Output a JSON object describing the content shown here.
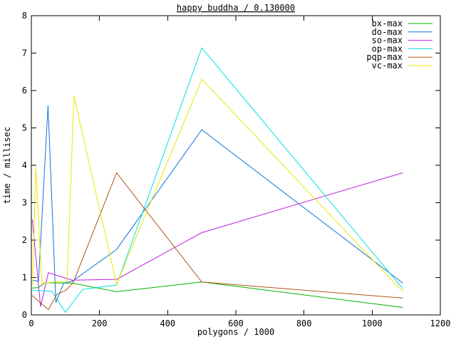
{
  "window": {
    "title": "happy buddha / 0.130000"
  },
  "chart_data": {
    "type": "line",
    "title": "happy buddha / 0.130000",
    "xlabel": "polygons / 1000",
    "ylabel": "time / millisec",
    "xlim": [
      0,
      1200
    ],
    "ylim": [
      0,
      8
    ],
    "xticks": [
      0,
      200,
      400,
      600,
      800,
      1000,
      1200
    ],
    "yticks": [
      0,
      1,
      2,
      3,
      4,
      5,
      6,
      7,
      8
    ],
    "grid": false,
    "legend_position": "top-right-inside",
    "background_color": "#ffffff",
    "border_color": "#000000",
    "series": [
      {
        "name": "bx-max",
        "color": "#00b000",
        "points": [
          [
            2,
            0.72
          ],
          [
            20,
            0.73
          ],
          [
            40,
            0.86
          ],
          [
            120,
            0.85
          ],
          [
            250,
            0.62
          ],
          [
            500,
            0.88
          ],
          [
            1090,
            0.2
          ]
        ]
      },
      {
        "name": "do-max",
        "color": "#0d75dc",
        "points": [
          [
            3,
            0.93
          ],
          [
            21,
            0.9
          ],
          [
            49,
            5.6
          ],
          [
            72,
            0.33
          ],
          [
            95,
            0.85
          ],
          [
            120,
            0.9
          ],
          [
            250,
            1.75
          ],
          [
            500,
            4.95
          ],
          [
            1090,
            0.85
          ]
        ]
      },
      {
        "name": "so-max",
        "color": "#c01fe0",
        "points": [
          [
            3,
            2.55
          ],
          [
            27,
            0.22
          ],
          [
            50,
            1.13
          ],
          [
            120,
            0.93
          ],
          [
            250,
            0.95
          ],
          [
            500,
            2.2
          ],
          [
            1090,
            3.8
          ]
        ]
      },
      {
        "name": "op-max",
        "color": "#00e0e0",
        "points": [
          [
            2,
            0.66
          ],
          [
            60,
            0.63
          ],
          [
            100,
            0.07
          ],
          [
            150,
            0.68
          ],
          [
            250,
            0.8
          ],
          [
            500,
            7.14
          ],
          [
            1090,
            0.7
          ]
        ]
      },
      {
        "name": "pqp-max",
        "color": "#b0541c",
        "points": [
          [
            2,
            0.52
          ],
          [
            50,
            0.14
          ],
          [
            75,
            0.55
          ],
          [
            100,
            0.65
          ],
          [
            122,
            0.85
          ],
          [
            250,
            3.8
          ],
          [
            500,
            0.88
          ],
          [
            1090,
            0.45
          ]
        ]
      },
      {
        "name": "vc-max",
        "color": "#e8e800",
        "points": [
          [
            4,
            0.8
          ],
          [
            13,
            3.95
          ],
          [
            31,
            0.85
          ],
          [
            105,
            0.9
          ],
          [
            125,
            5.85
          ],
          [
            250,
            0.82
          ],
          [
            500,
            6.3
          ],
          [
            1090,
            0.62
          ]
        ]
      }
    ]
  }
}
